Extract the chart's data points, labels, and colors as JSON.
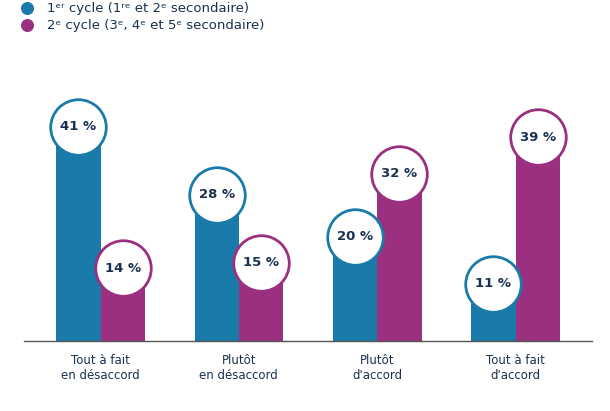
{
  "categories": [
    "Tout à fait\nen désaccord",
    "Plutôt\nen désaccord",
    "Plutôt\nd'accord",
    "Tout à fait\nd'accord"
  ],
  "cycle1_values": [
    41,
    28,
    20,
    11
  ],
  "cycle2_values": [
    14,
    15,
    32,
    39
  ],
  "cycle1_color": "#1a7aaa",
  "cycle2_color": "#9b3080",
  "circle_color": "#ffffff",
  "text_color": "#1a3050",
  "bar_width": 0.32,
  "ylim": [
    0,
    48
  ],
  "font_size_labels": 9.5,
  "font_size_legend": 9.5,
  "font_size_xtick": 8.5,
  "background_color": "#ffffff",
  "circle_size_pts": 1600
}
